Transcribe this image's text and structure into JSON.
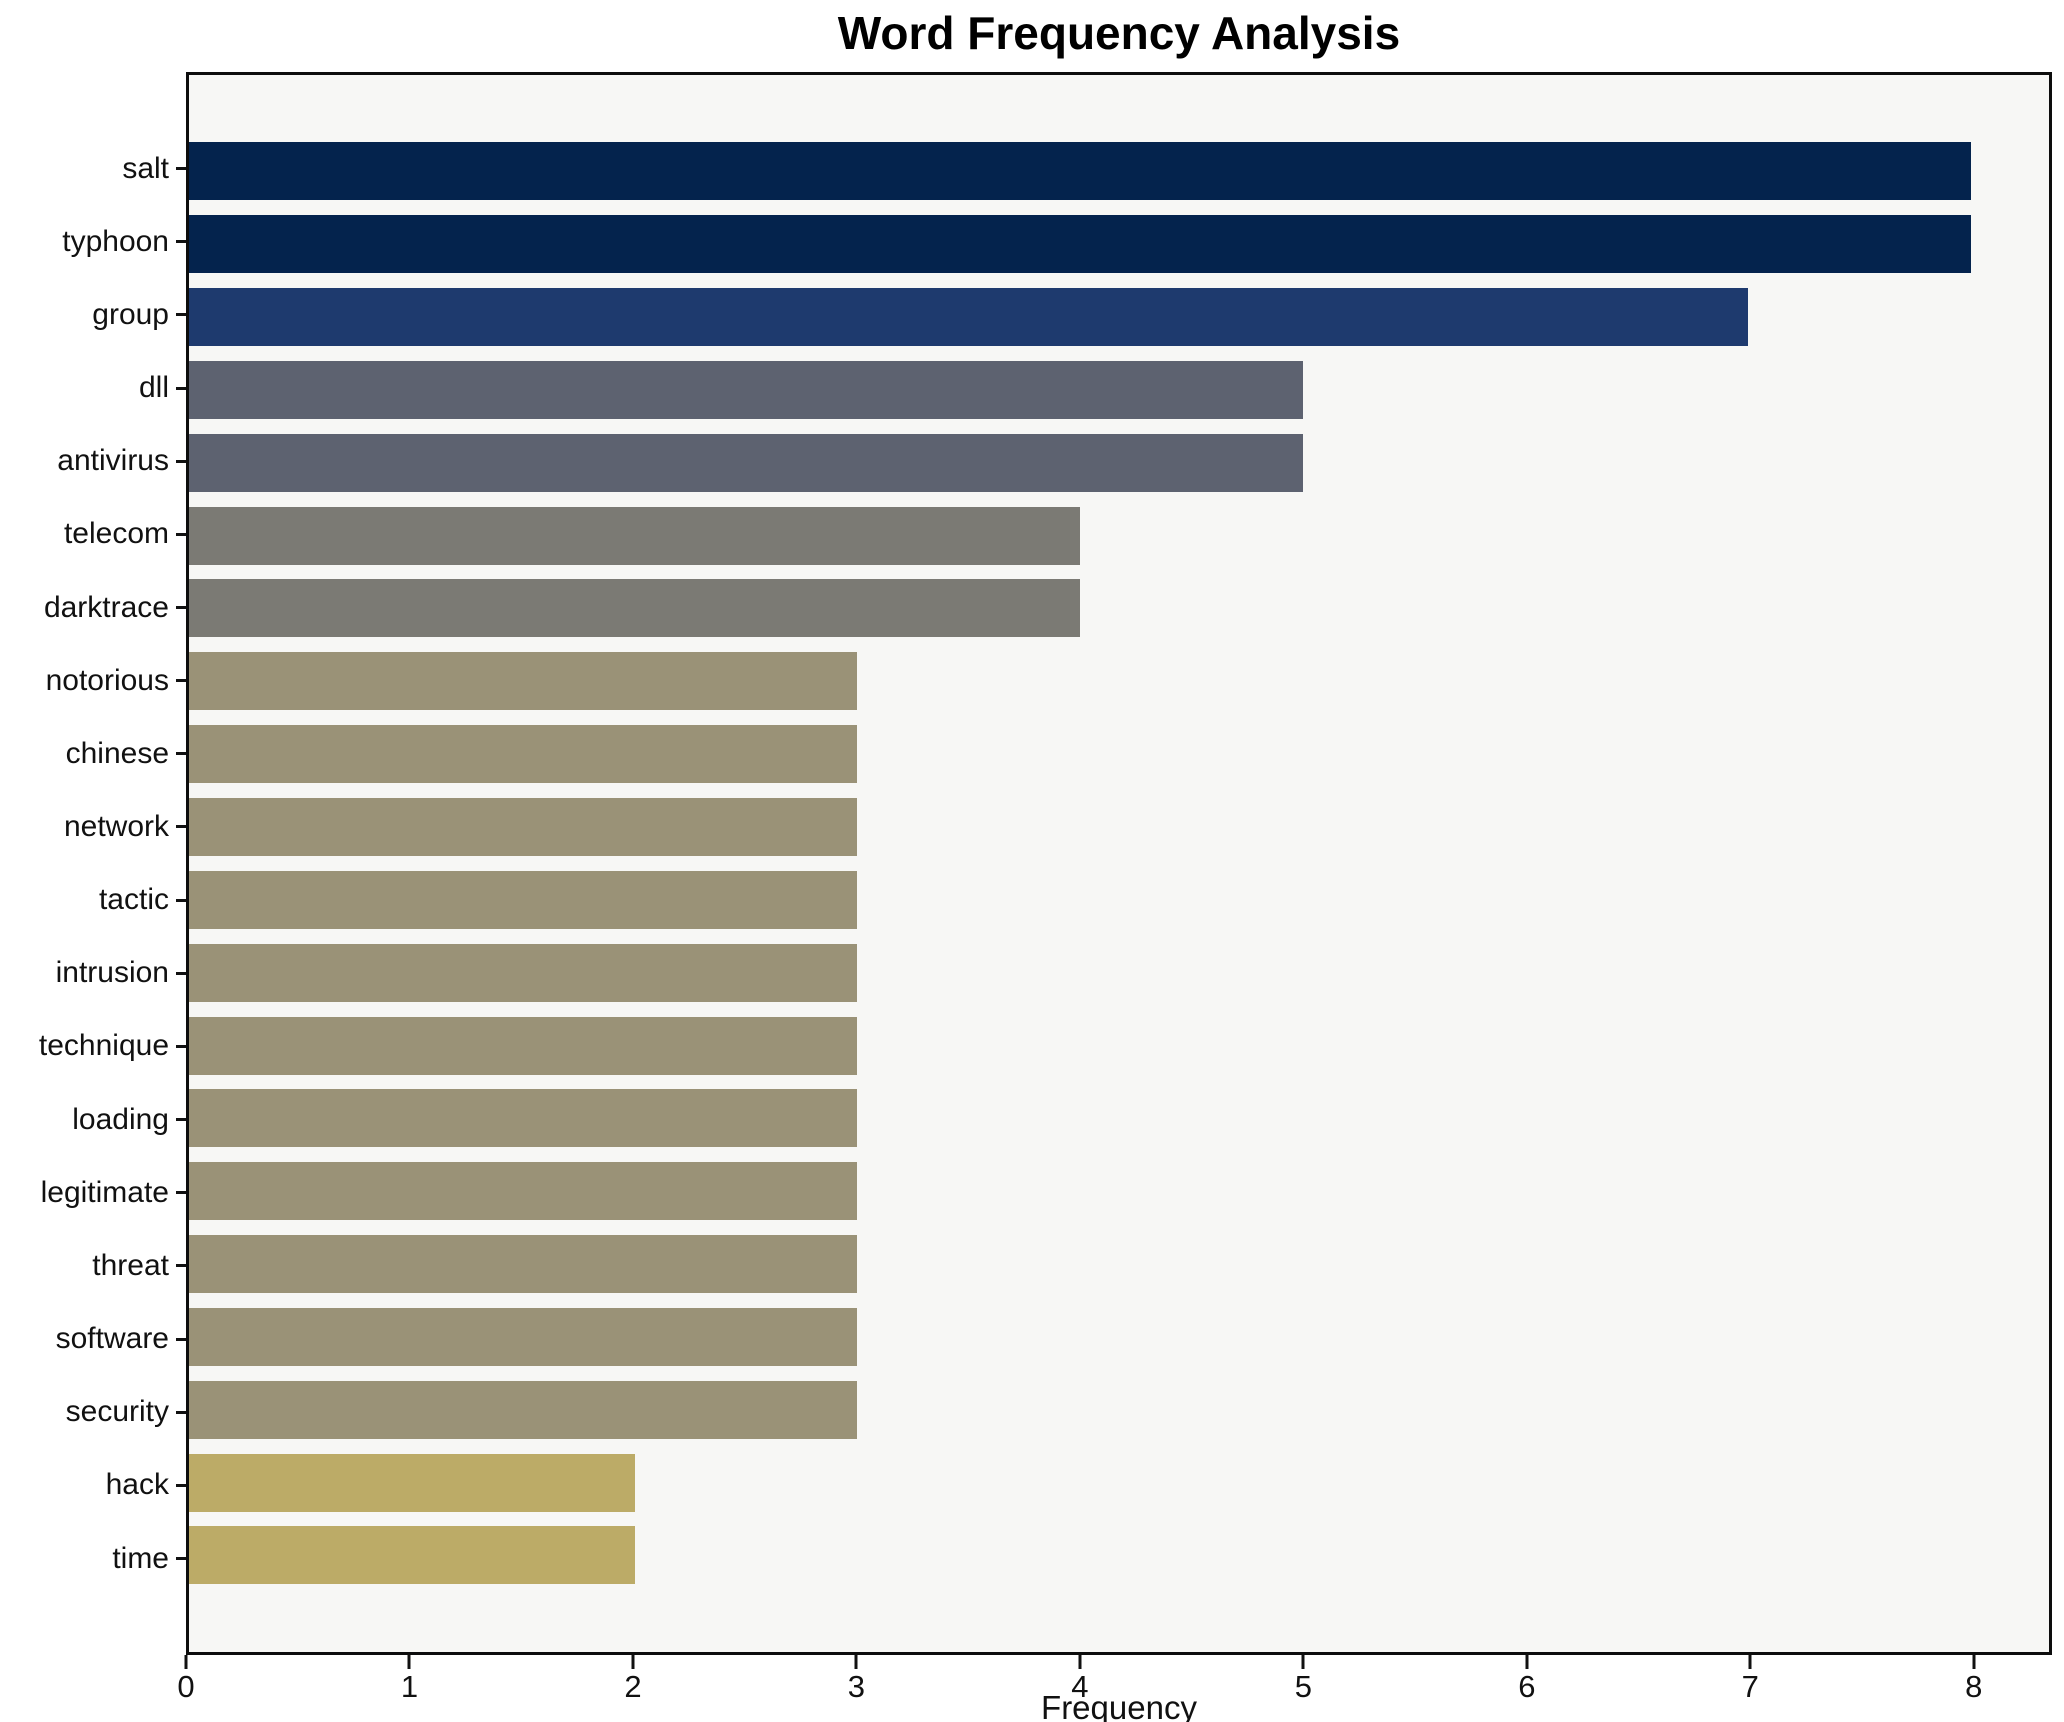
{
  "title": "Word Frequency Analysis",
  "chart_data": {
    "type": "bar",
    "orientation": "horizontal",
    "title": "Word Frequency Analysis",
    "xlabel": "Frequency",
    "ylabel": "",
    "categories": [
      "salt",
      "typhoon",
      "group",
      "dll",
      "antivirus",
      "telecom",
      "darktrace",
      "notorious",
      "chinese",
      "network",
      "tactic",
      "intrusion",
      "technique",
      "loading",
      "legitimate",
      "threat",
      "software",
      "security",
      "hack",
      "time"
    ],
    "values": [
      8,
      8,
      7,
      5,
      5,
      4,
      4,
      3,
      3,
      3,
      3,
      3,
      3,
      3,
      3,
      3,
      3,
      3,
      2,
      2
    ],
    "bar_colors": [
      "#04234d",
      "#04234d",
      "#1e3a6e",
      "#5d6270",
      "#5d6270",
      "#7b7a74",
      "#7b7a74",
      "#9a9277",
      "#9a9277",
      "#9a9277",
      "#9a9277",
      "#9a9277",
      "#9a9277",
      "#9a9277",
      "#9a9277",
      "#9a9277",
      "#9a9277",
      "#9a9277",
      "#bcab67",
      "#bcab67"
    ],
    "xlim": [
      0,
      8.35
    ],
    "xticks": [
      0,
      1,
      2,
      3,
      4,
      5,
      6,
      7,
      8
    ],
    "grid": false,
    "legend": false,
    "plot_background": "#f7f7f5",
    "spine_color": "#0d0d0d"
  }
}
